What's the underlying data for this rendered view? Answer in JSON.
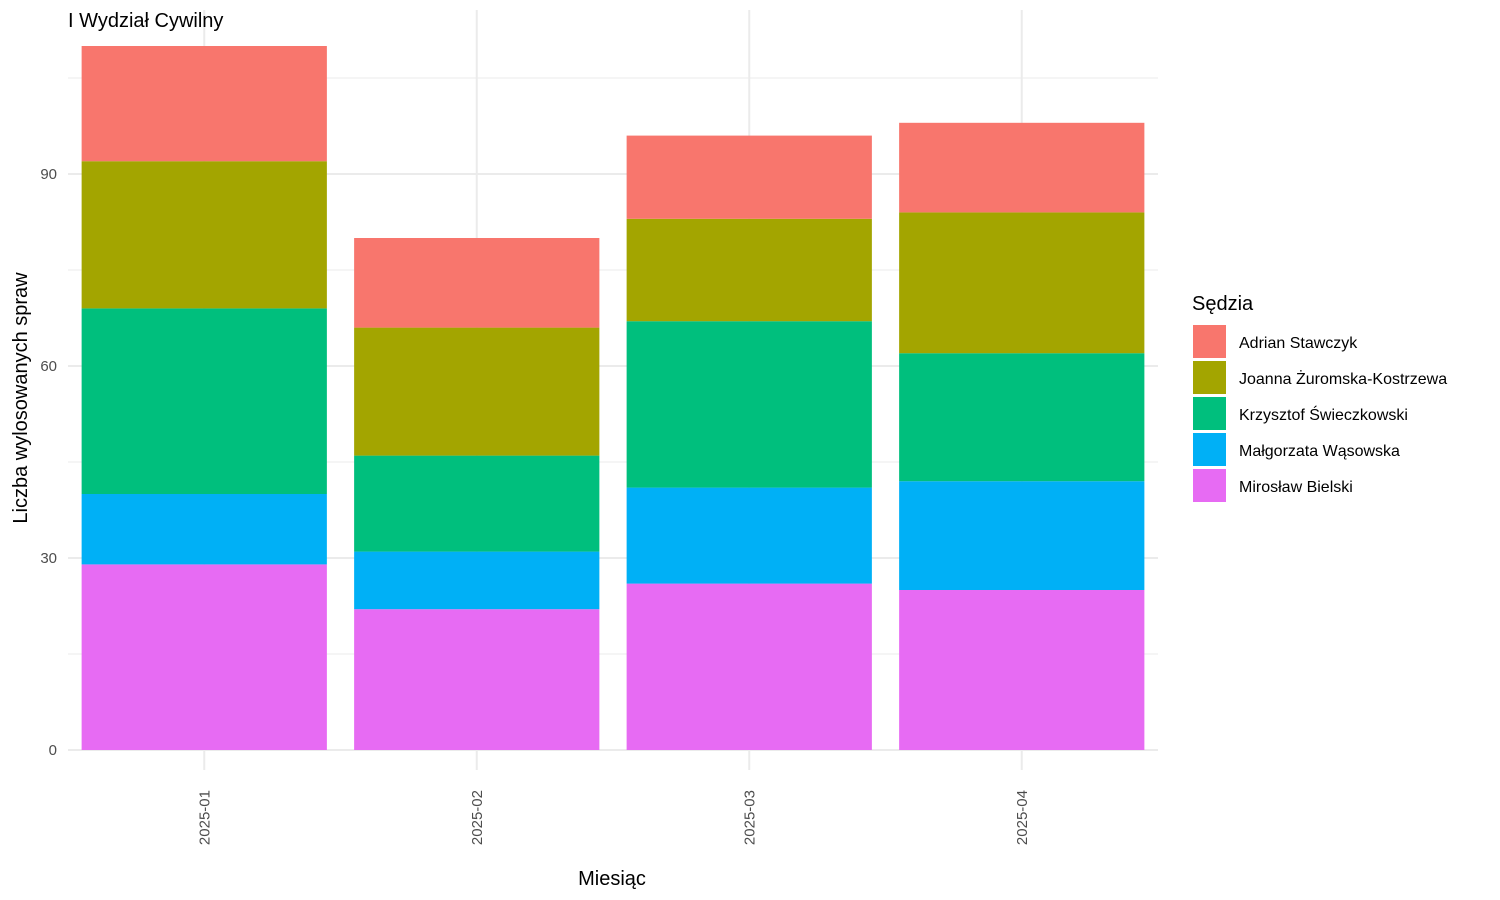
{
  "chart_data": {
    "type": "bar",
    "stacked": true,
    "title": "I Wydział Cywilny",
    "xlabel": "Miesiąc",
    "ylabel": "Liczba wylosowanych spraw",
    "categories": [
      "2025-01",
      "2025-02",
      "2025-03",
      "2025-04"
    ],
    "yticks": [
      0,
      30,
      60,
      90
    ],
    "ylim": [
      0,
      110
    ],
    "grid": true,
    "legend": {
      "title": "Sędzia",
      "position": "right",
      "order": [
        "Adrian Stawczyk",
        "Joanna Żuromska-Kostrzewa",
        "Krzysztof Świeczkowski",
        "Małgorzata Wąsowska",
        "Mirosław Bielski"
      ]
    },
    "series": [
      {
        "name": "Mirosław Bielski",
        "color": "#E76BF3",
        "values": [
          29,
          22,
          26,
          25
        ]
      },
      {
        "name": "Małgorzata Wąsowska",
        "color": "#00B0F6",
        "values": [
          11,
          9,
          15,
          17
        ]
      },
      {
        "name": "Krzysztof Świeczkowski",
        "color": "#00BF7D",
        "values": [
          29,
          15,
          26,
          20
        ]
      },
      {
        "name": "Joanna Żuromska-Kostrzewa",
        "color": "#A3A500",
        "values": [
          23,
          20,
          16,
          22
        ]
      },
      {
        "name": "Adrian Stawczyk",
        "color": "#F8766D",
        "values": [
          18,
          14,
          13,
          14
        ]
      }
    ]
  }
}
